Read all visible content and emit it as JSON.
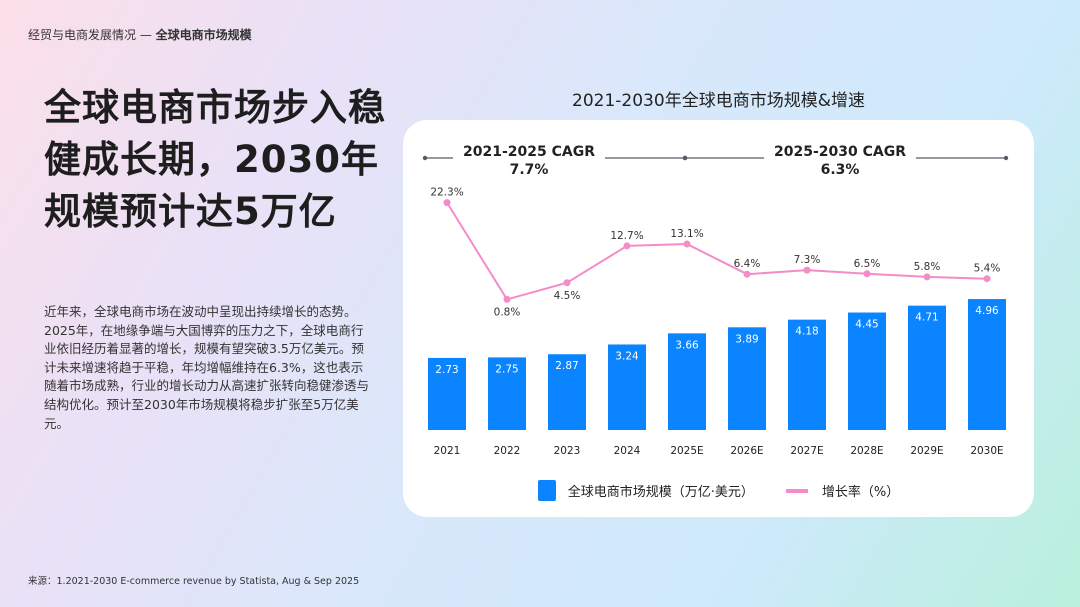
{
  "breadcrumb": {
    "section": "经贸与电商发展情况 — ",
    "page": "全球电商市场规模"
  },
  "headline": "全球电商市场步入稳健成长期，2030年规模预计达5万亿",
  "paragraph": "近年来，全球电商市场在波动中呈现出持续增长的态势。2025年，在地缘争端与大国博弈的压力之下，全球电商行业依旧经历着显著的增长，规模有望突破3.5万亿美元。预计未来增速将趋于平稳，年均增幅维持在6.3%，这也表示随着市场成熟，行业的增长动力从高速扩张转向稳健渗透与结构优化。预计至2030年市场规模将稳步扩张至5万亿美元。",
  "source": "来源：1.2021-2030 E-commerce revenue  by Statista, Aug & Sep 2025",
  "chart_data": {
    "type": "bar+line",
    "title": "2021-2030年全球电商市场规模&增速",
    "categories": [
      "2021",
      "2022",
      "2023",
      "2024",
      "2025E",
      "2026E",
      "2027E",
      "2028E",
      "2029E",
      "2030E"
    ],
    "series": [
      {
        "name": "全球电商市场规模（万亿·美元）",
        "type": "bar",
        "color": "#0a84ff",
        "values": [
          2.73,
          2.75,
          2.87,
          3.24,
          3.66,
          3.89,
          4.18,
          4.45,
          4.71,
          4.96
        ],
        "labels": [
          "2.73",
          "2.75",
          "2.87",
          "3.24",
          "3.66",
          "3.89",
          "4.18",
          "4.45",
          "4.71",
          "4.96"
        ]
      },
      {
        "name": "增长率（%）",
        "type": "line",
        "color": "#f48cc8",
        "values": [
          22.3,
          0.8,
          4.5,
          12.7,
          13.1,
          6.4,
          7.3,
          6.5,
          5.8,
          5.4
        ],
        "labels": [
          "22.3%",
          "0.8%",
          "4.5%",
          "12.7%",
          "13.1%",
          "6.4%",
          "7.3%",
          "6.5%",
          "5.8%",
          "5.4%"
        ]
      }
    ],
    "annotations": [
      {
        "label": "2021-2025 CAGR",
        "value": "7.7%"
      },
      {
        "label": "2025-2030 CAGR",
        "value": "6.3%"
      }
    ],
    "legend": "bottom",
    "grid": false
  }
}
